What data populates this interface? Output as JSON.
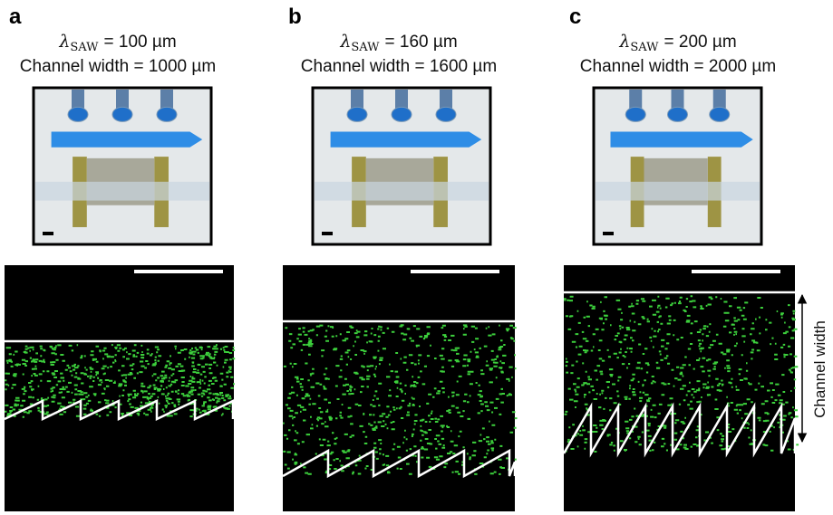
{
  "panels": [
    {
      "label": "a",
      "wavelength_symbol": "λ",
      "wavelength_subscript": "SAW",
      "wavelength_value": "= 100 µm",
      "channel_width": "Channel width = 1000 µm"
    },
    {
      "label": "b",
      "wavelength_symbol": "λ",
      "wavelength_subscript": "SAW",
      "wavelength_value": "= 160 µm",
      "channel_width": "Channel width = 1600 µm"
    },
    {
      "label": "c",
      "wavelength_symbol": "λ",
      "wavelength_subscript": "SAW",
      "wavelength_value": "= 200 µm",
      "channel_width": "Channel width = 2000 µm"
    }
  ],
  "side_label": "Channel width"
}
